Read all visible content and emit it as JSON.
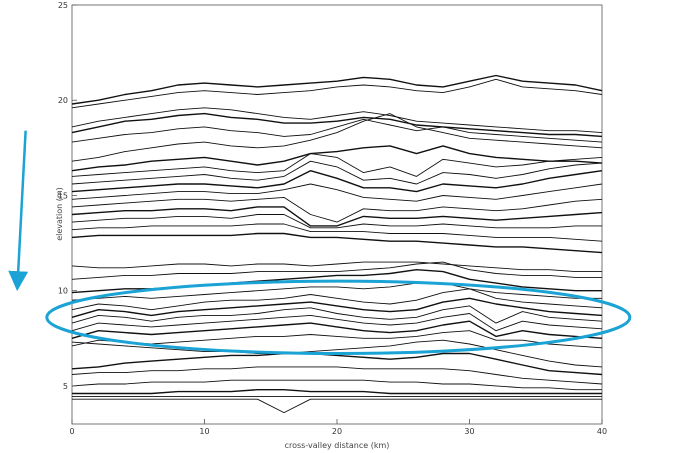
{
  "chart_data": {
    "type": "line",
    "title": "",
    "xlabel": "cross-valley distance (km)",
    "ylabel": "elevation (m)",
    "xlim": [
      0,
      40
    ],
    "ylim": [
      3,
      25
    ],
    "x_ticks": [
      0,
      10,
      20,
      30,
      40
    ],
    "y_ticks": [
      5,
      10,
      15,
      20,
      25
    ],
    "grid": false,
    "legend": "none",
    "line_color": "#111111",
    "annotation_color": "#1aa3d4",
    "annotations": [
      {
        "type": "ellipse",
        "center_x_km": 20.1,
        "center_y_m": 8.6,
        "radius_x_km": 22.0,
        "radius_y_m": 1.9
      },
      {
        "type": "arrow",
        "from_x_km": -3.5,
        "from_y_m": 18.4,
        "to_x_km": -4.1,
        "to_y_m": 10.5
      }
    ],
    "x": [
      0,
      2,
      4,
      6,
      8,
      10,
      12,
      14,
      16,
      18,
      20,
      22,
      24,
      26,
      28,
      30,
      32,
      34,
      36,
      38,
      40
    ],
    "series": [
      {
        "values": [
          19.8,
          20.0,
          20.3,
          20.5,
          20.8,
          20.9,
          20.8,
          20.7,
          20.8,
          20.9,
          21.0,
          21.2,
          21.1,
          20.8,
          20.7,
          21.0,
          21.3,
          21.0,
          20.9,
          20.8,
          20.5
        ]
      },
      {
        "values": [
          19.6,
          19.8,
          20.0,
          20.2,
          20.4,
          20.5,
          20.4,
          20.3,
          20.4,
          20.5,
          20.7,
          20.8,
          20.7,
          20.5,
          20.4,
          20.7,
          21.1,
          20.7,
          20.6,
          20.5,
          20.3
        ]
      },
      {
        "values": [
          18.6,
          18.9,
          19.1,
          19.3,
          19.5,
          19.6,
          19.5,
          19.3,
          19.1,
          19.0,
          19.2,
          19.4,
          19.2,
          18.9,
          18.8,
          18.7,
          18.6,
          18.5,
          18.4,
          18.4,
          18.3
        ]
      },
      {
        "values": [
          18.3,
          18.6,
          18.9,
          19.0,
          19.2,
          19.3,
          19.1,
          19.0,
          18.8,
          18.8,
          18.9,
          19.1,
          19.0,
          18.7,
          18.6,
          18.5,
          18.4,
          18.3,
          18.2,
          18.2,
          18.1
        ]
      },
      {
        "values": [
          17.8,
          18.0,
          18.2,
          18.3,
          18.5,
          18.6,
          18.4,
          18.3,
          18.1,
          18.2,
          18.6,
          19.0,
          18.7,
          18.4,
          18.6,
          18.3,
          18.2,
          18.1,
          18.0,
          17.9,
          17.8
        ]
      },
      {
        "values": [
          16.8,
          17.0,
          17.3,
          17.5,
          17.7,
          17.8,
          17.6,
          17.5,
          17.6,
          17.9,
          18.3,
          18.9,
          19.3,
          18.6,
          18.3,
          18.0,
          17.9,
          17.8,
          17.7,
          17.6,
          17.5
        ]
      },
      {
        "values": [
          16.3,
          16.5,
          16.6,
          16.8,
          16.9,
          17.0,
          16.8,
          16.6,
          16.8,
          17.2,
          17.3,
          17.5,
          17.6,
          17.2,
          17.6,
          17.2,
          17.0,
          16.9,
          16.8,
          16.8,
          16.7
        ]
      },
      {
        "values": [
          16.0,
          16.1,
          16.2,
          16.3,
          16.4,
          16.5,
          16.3,
          16.2,
          16.3,
          17.2,
          17.0,
          16.2,
          16.5,
          16.0,
          16.9,
          16.7,
          16.5,
          16.6,
          16.8,
          16.9,
          17.0
        ]
      },
      {
        "values": [
          15.6,
          15.7,
          15.8,
          15.9,
          16.0,
          16.1,
          15.9,
          15.8,
          16.0,
          16.8,
          16.5,
          15.8,
          15.9,
          15.6,
          16.2,
          16.1,
          15.9,
          16.1,
          16.4,
          16.6,
          16.7
        ]
      },
      {
        "values": [
          15.2,
          15.3,
          15.4,
          15.5,
          15.6,
          15.6,
          15.5,
          15.4,
          15.6,
          16.3,
          15.9,
          15.4,
          15.4,
          15.2,
          15.6,
          15.5,
          15.4,
          15.6,
          15.9,
          16.1,
          16.3
        ]
      },
      {
        "values": [
          14.8,
          14.9,
          15.0,
          15.1,
          15.2,
          15.2,
          15.1,
          15.1,
          15.3,
          15.6,
          15.3,
          14.9,
          14.8,
          14.7,
          15.0,
          14.9,
          14.8,
          15.0,
          15.2,
          15.4,
          15.6
        ]
      },
      {
        "values": [
          14.4,
          14.5,
          14.6,
          14.7,
          14.8,
          14.8,
          14.7,
          14.8,
          14.9,
          14.0,
          13.6,
          14.3,
          14.2,
          14.2,
          14.4,
          14.3,
          14.2,
          14.3,
          14.5,
          14.7,
          14.8
        ]
      },
      {
        "values": [
          14.0,
          14.1,
          14.2,
          14.2,
          14.3,
          14.3,
          14.2,
          14.4,
          14.4,
          13.4,
          13.4,
          13.9,
          13.8,
          13.8,
          13.9,
          13.8,
          13.7,
          13.8,
          13.9,
          14.0,
          14.1
        ]
      },
      {
        "values": [
          13.6,
          13.7,
          13.8,
          13.8,
          13.9,
          13.9,
          13.8,
          14.0,
          14.0,
          13.3,
          13.3,
          13.5,
          13.4,
          13.4,
          13.5,
          13.4,
          13.3,
          13.3,
          13.3,
          13.4,
          13.4
        ]
      },
      {
        "values": [
          13.2,
          13.3,
          13.3,
          13.4,
          13.4,
          13.4,
          13.4,
          13.5,
          13.5,
          13.1,
          13.1,
          13.1,
          13.0,
          13.0,
          13.0,
          12.9,
          12.8,
          12.8,
          12.8,
          12.7,
          12.6
        ]
      },
      {
        "values": [
          12.8,
          12.9,
          12.9,
          12.9,
          12.9,
          12.9,
          12.9,
          13.0,
          13.0,
          12.8,
          12.8,
          12.7,
          12.6,
          12.6,
          12.5,
          12.4,
          12.3,
          12.3,
          12.2,
          12.1,
          12.0
        ]
      },
      {
        "values": [
          11.3,
          11.2,
          11.2,
          11.3,
          11.4,
          11.4,
          11.3,
          11.4,
          11.4,
          11.3,
          11.4,
          11.5,
          11.5,
          11.5,
          11.4,
          11.3,
          11.2,
          11.1,
          11.1,
          11.0,
          11.0
        ]
      },
      {
        "values": [
          10.6,
          10.7,
          10.8,
          10.8,
          10.9,
          10.9,
          10.9,
          11.0,
          11.0,
          11.0,
          11.0,
          11.1,
          11.2,
          11.4,
          11.5,
          11.1,
          10.9,
          10.8,
          10.8,
          10.7,
          10.7
        ]
      },
      {
        "values": [
          9.9,
          10.0,
          10.1,
          10.1,
          10.2,
          10.3,
          10.4,
          10.5,
          10.6,
          10.7,
          10.8,
          10.8,
          10.9,
          11.1,
          11.0,
          10.6,
          10.4,
          10.2,
          10.1,
          10.0,
          10.0
        ]
      },
      {
        "values": [
          9.5,
          9.6,
          9.7,
          9.6,
          9.7,
          9.8,
          9.9,
          10.0,
          10.1,
          10.2,
          10.2,
          10.1,
          10.2,
          10.4,
          10.4,
          10.1,
          9.9,
          9.8,
          9.7,
          9.6,
          9.6
        ]
      },
      {
        "values": [
          9.0,
          9.3,
          9.2,
          9.0,
          9.2,
          9.4,
          9.5,
          9.5,
          9.6,
          9.8,
          9.6,
          9.4,
          9.3,
          9.5,
          9.9,
          10.1,
          9.6,
          9.4,
          9.3,
          9.2,
          9.1
        ]
      },
      {
        "values": [
          8.6,
          9.0,
          8.9,
          8.7,
          8.9,
          9.0,
          9.1,
          9.2,
          9.3,
          9.4,
          9.2,
          9.0,
          8.9,
          9.0,
          9.4,
          9.6,
          9.3,
          9.1,
          8.9,
          8.8,
          8.7
        ]
      },
      {
        "values": [
          8.3,
          8.7,
          8.6,
          8.4,
          8.6,
          8.7,
          8.7,
          8.8,
          9.0,
          9.1,
          8.8,
          8.6,
          8.5,
          8.6,
          9.0,
          9.2,
          8.3,
          8.9,
          8.6,
          8.5,
          8.4
        ]
      },
      {
        "values": [
          7.9,
          8.3,
          8.2,
          8.1,
          8.2,
          8.3,
          8.4,
          8.5,
          8.6,
          8.7,
          8.5,
          8.3,
          8.2,
          8.3,
          8.6,
          8.8,
          7.9,
          8.4,
          8.2,
          8.1,
          8.0
        ]
      },
      {
        "values": [
          7.5,
          7.9,
          7.8,
          7.7,
          7.8,
          7.9,
          8.0,
          8.1,
          8.2,
          8.3,
          8.1,
          7.9,
          7.8,
          7.9,
          8.2,
          8.4,
          7.6,
          7.9,
          7.7,
          7.6,
          7.5
        ]
      },
      {
        "values": [
          7.1,
          7.4,
          7.3,
          7.2,
          7.3,
          7.4,
          7.5,
          7.6,
          7.6,
          7.7,
          7.6,
          7.5,
          7.5,
          7.6,
          7.8,
          7.9,
          7.4,
          7.4,
          7.2,
          7.1,
          7.0
        ]
      },
      {
        "values": [
          7.3,
          7.2,
          7.1,
          7.0,
          6.9,
          6.8,
          6.8,
          6.7,
          6.7,
          6.8,
          6.9,
          7.0,
          7.1,
          7.3,
          7.4,
          7.2,
          6.9,
          6.6,
          6.3,
          6.1,
          6.0
        ]
      },
      {
        "values": [
          5.9,
          6.0,
          6.2,
          6.3,
          6.4,
          6.5,
          6.6,
          6.6,
          6.7,
          6.7,
          6.6,
          6.5,
          6.4,
          6.5,
          6.7,
          6.7,
          6.4,
          6.1,
          5.8,
          5.7,
          5.6
        ]
      },
      {
        "values": [
          5.6,
          5.7,
          5.7,
          5.8,
          5.8,
          5.9,
          5.9,
          6.0,
          6.0,
          6.0,
          6.0,
          5.9,
          5.9,
          5.9,
          5.9,
          5.8,
          5.6,
          5.4,
          5.3,
          5.2,
          5.1
        ]
      },
      {
        "values": [
          5.0,
          5.1,
          5.1,
          5.2,
          5.2,
          5.2,
          5.3,
          5.3,
          5.3,
          5.3,
          5.3,
          5.3,
          5.2,
          5.2,
          5.1,
          5.1,
          5.0,
          4.9,
          4.9,
          4.8,
          4.8
        ]
      },
      {
        "values": [
          4.6,
          4.6,
          4.6,
          4.6,
          4.7,
          4.7,
          4.7,
          4.8,
          4.8,
          4.7,
          4.7,
          4.7,
          4.6,
          4.6,
          4.6,
          4.6,
          4.6,
          4.6,
          4.6,
          4.6,
          4.6
        ]
      },
      {
        "values": [
          4.45,
          4.45,
          4.45,
          4.45,
          4.45,
          4.45,
          4.45,
          4.45,
          4.45,
          4.45,
          4.45,
          4.45,
          4.45,
          4.45,
          4.45,
          4.45,
          4.45,
          4.45,
          4.45,
          4.45,
          4.45
        ]
      },
      {
        "values": [
          4.3,
          4.3,
          4.3,
          4.3,
          4.3,
          4.3,
          4.3,
          4.3,
          3.6,
          4.3,
          4.3,
          4.3,
          4.3,
          4.3,
          4.3,
          4.3,
          4.3,
          4.3,
          4.3,
          4.3,
          4.3
        ]
      }
    ]
  }
}
